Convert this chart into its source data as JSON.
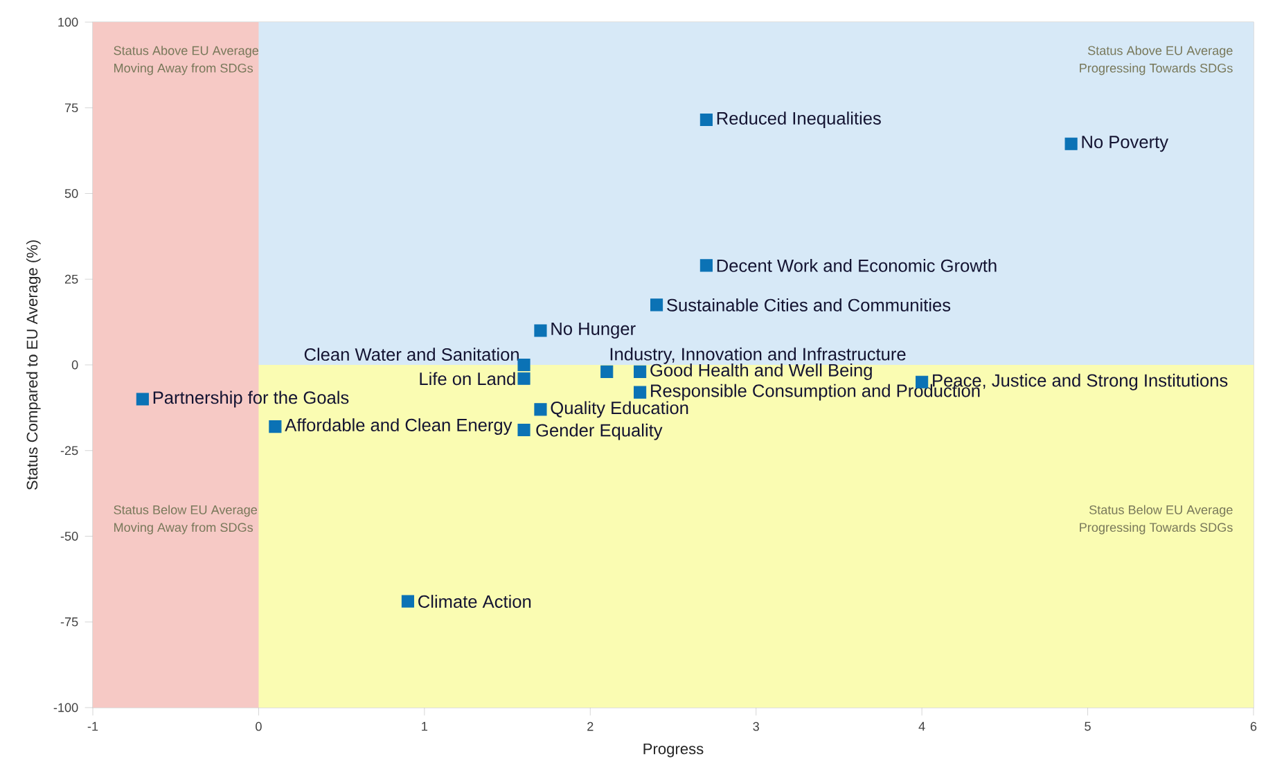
{
  "chart_data": {
    "type": "scatter",
    "xlabel": "Progress",
    "ylabel": "Status Compared to EU Average (%)",
    "xlim": [
      -1,
      6
    ],
    "ylim": [
      -100,
      100
    ],
    "xticks": [
      -1,
      0,
      1,
      2,
      3,
      4,
      5,
      6
    ],
    "yticks": [
      -100,
      -75,
      -50,
      -25,
      0,
      25,
      50,
      75,
      100
    ],
    "marker": "square",
    "grid": false,
    "bands": [
      {
        "axis": "y",
        "from": 0,
        "to": 100,
        "color": "#d7e9f7"
      },
      {
        "axis": "y",
        "from": -100,
        "to": 0,
        "color": "#fafcb2"
      },
      {
        "axis": "x",
        "from": -1,
        "to": 0,
        "color": "#f6c9c5"
      }
    ],
    "annotations": [
      "Status Above EU Average",
      "Moving Away from SDGs",
      "Status Above EU Average",
      "Progressing Towards SDGs",
      "Status Below EU Average",
      "Moving Away from SDGs",
      "Status Below EU Average",
      "Progressing Towards SDGs"
    ],
    "series": [
      {
        "name": "Reduced Inequalities",
        "color": "#0b72b5",
        "x": [
          2.7
        ],
        "values": [
          71.5
        ]
      },
      {
        "name": "No Poverty",
        "color": "#0b72b5",
        "x": [
          4.9
        ],
        "values": [
          64.5
        ]
      },
      {
        "name": "Decent Work and Economic Growth",
        "color": "#0b72b5",
        "x": [
          2.7
        ],
        "values": [
          29
        ]
      },
      {
        "name": "Sustainable Cities and Communities",
        "color": "#0b72b5",
        "x": [
          2.4
        ],
        "values": [
          17.5
        ]
      },
      {
        "name": "No Hunger",
        "color": "#0b72b5",
        "x": [
          1.7
        ],
        "values": [
          10
        ]
      },
      {
        "name": "Clean Water and Sanitation",
        "color": "#0b72b5",
        "x": [
          1.6
        ],
        "values": [
          0
        ]
      },
      {
        "name": "Life on Land",
        "color": "#0b72b5",
        "x": [
          1.6
        ],
        "values": [
          -4
        ]
      },
      {
        "name": "Industry, Innovation and Infrastructure",
        "color": "#0b72b5",
        "x": [
          2.1
        ],
        "values": [
          -2
        ]
      },
      {
        "name": "Good Health and Well Being",
        "color": "#0b72b5",
        "x": [
          2.3
        ],
        "values": [
          -2
        ]
      },
      {
        "name": "Responsible Consumption and Production",
        "color": "#0b72b5",
        "x": [
          2.3
        ],
        "values": [
          -8
        ]
      },
      {
        "name": "Peace, Justice and Strong Institutions",
        "color": "#0b72b5",
        "x": [
          4.0
        ],
        "values": [
          -5
        ]
      },
      {
        "name": "Quality Education",
        "color": "#0b72b5",
        "x": [
          1.7
        ],
        "values": [
          -13
        ]
      },
      {
        "name": "Gender Equality",
        "color": "#0b72b5",
        "x": [
          1.6
        ],
        "values": [
          -19
        ]
      },
      {
        "name": "Partnership for the Goals",
        "color": "#0b72b5",
        "x": [
          -0.7
        ],
        "values": [
          -10
        ]
      },
      {
        "name": "Affordable and Clean Energy",
        "color": "#0b72b5",
        "x": [
          0.1
        ],
        "values": [
          -18
        ]
      },
      {
        "name": "Climate Action",
        "color": "#0b72b5",
        "x": [
          0.9
        ],
        "values": [
          -69
        ]
      }
    ]
  }
}
